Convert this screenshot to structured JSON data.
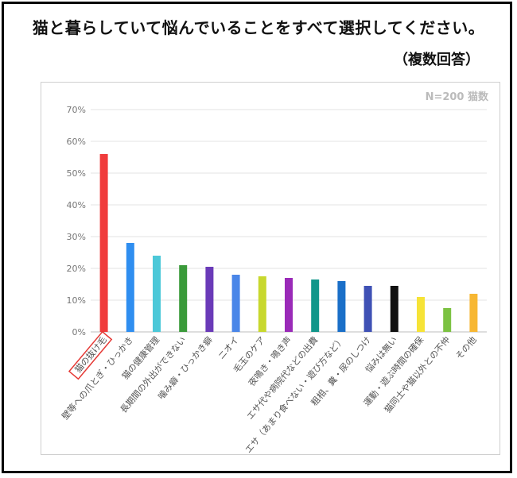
{
  "header": {
    "title": "猫と暮らしていて悩んでいることをすべて選択してください。",
    "subtitle": "（複数回答）"
  },
  "chart_data": {
    "type": "bar",
    "note": "N=200 猫数",
    "categories": [
      "猫の抜け毛",
      "壁等への爪とぎ・ひっかき",
      "猫の健康管理",
      "長期間の外出ができない",
      "噛み癖・ひっかき癖",
      "ニオイ",
      "毛玉のケア",
      "夜鳴き・鳴き声",
      "エサ代や病院代などの出費",
      "エサ（あまり食べない・遊び方など）",
      "粗相、糞・尿のしつけ",
      "悩みは無い",
      "運動・遊ぶ時間の確保",
      "猫同士や猫以外との不仲",
      "その他"
    ],
    "values": [
      56,
      28,
      24,
      21,
      20.5,
      18,
      17.5,
      17,
      16.5,
      16,
      14.5,
      14.5,
      11,
      7.5,
      12
    ],
    "colors": [
      "#f03c3c",
      "#2f8ef0",
      "#4cc8d8",
      "#3a9a3a",
      "#6a3ab8",
      "#4a86e8",
      "#c8d82e",
      "#9a2ab8",
      "#11968a",
      "#1a6fc8",
      "#3f51b5",
      "#111111",
      "#f6e337",
      "#7cc242",
      "#f7b733"
    ],
    "highlight_index": 0,
    "highlight_color": "#e53935",
    "ylim": [
      0,
      70
    ],
    "yticks": [
      0,
      10,
      20,
      30,
      40,
      50,
      60,
      70
    ],
    "ytick_labels": [
      "0%",
      "10%",
      "20%",
      "30%",
      "40%",
      "50%",
      "60%",
      "70%"
    ],
    "grid": true,
    "gridline_color": "#e3e3e3"
  }
}
